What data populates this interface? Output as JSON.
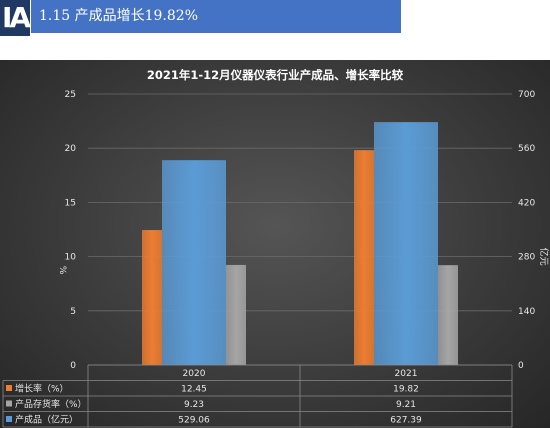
{
  "header": {
    "logo_text": "IA",
    "title": "1.15 产成品增长19.82%"
  },
  "colors": {
    "banner": "#4472c4",
    "logo_bg": "#1f3864",
    "growth": "#ed7d31",
    "inventory": "#a5a5a5",
    "product": "#5b9bd5"
  },
  "chart_data": {
    "type": "bar",
    "title": "2021年1-12月仪器仪表行业产成品、增长率比较",
    "categories": [
      "2020",
      "2021"
    ],
    "ylabel_left": "%",
    "ylabel_right": "亿元",
    "ylim_left": [
      0,
      25
    ],
    "ylim_right": [
      0,
      700
    ],
    "yticks_left": [
      0,
      5,
      10,
      15,
      20,
      25
    ],
    "yticks_right": [
      0,
      140,
      280,
      420,
      560,
      700
    ],
    "grid": true,
    "legend": "data-table",
    "series": [
      {
        "name": "增长率（%）",
        "axis": "left",
        "color": "#ed7d31",
        "values": [
          12.45,
          19.82
        ],
        "labels": [
          "12.45",
          "19.82"
        ]
      },
      {
        "name": "产品存货率（%）",
        "axis": "left",
        "color": "#a5a5a5",
        "values": [
          9.23,
          9.21
        ],
        "labels": [
          "9.23",
          "9.21"
        ]
      },
      {
        "name": "产成品（亿元）",
        "axis": "right",
        "color": "#5b9bd5",
        "values": [
          529.06,
          627.39
        ],
        "labels": [
          "529.06",
          "627.39"
        ]
      }
    ]
  }
}
